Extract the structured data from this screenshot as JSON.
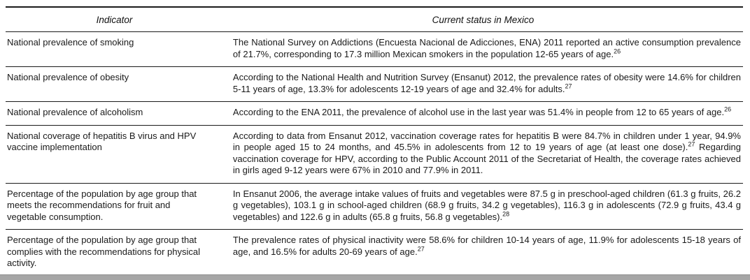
{
  "page": {
    "background": "#ffffff",
    "text_color": "#1a1a1a",
    "rule_color": "#1a1a1a"
  },
  "table": {
    "headers": {
      "indicator": "Indicator",
      "status": "Current status in Mexico"
    },
    "rows": [
      {
        "indicator": "National prevalence of smoking",
        "status": [
          {
            "t": "The National Survey on Addictions (Encuesta Nacional de Adicciones, ENA) 2011 reported an active consumption prevalence of 21.7%, corresponding to 17.3 million Mexican smokers in the population 12-65 years of age.",
            "sup": false
          },
          {
            "t": "26",
            "sup": true
          }
        ]
      },
      {
        "indicator": "National prevalence of obesity",
        "status": [
          {
            "t": "According to the National Health and Nutrition Survey (Ensanut) 2012, the prevalence rates of obesity were 14.6% for children 5-11 years of age, 13.3% for adolescents 12-19 years of age and 32.4% for adults.",
            "sup": false
          },
          {
            "t": "27",
            "sup": true
          }
        ]
      },
      {
        "indicator": "National prevalence of alcoholism",
        "status": [
          {
            "t": "According to the ENA 2011, the prevalence of alcohol use in the last year was 51.4% in people from 12 to 65 years of age.",
            "sup": false
          },
          {
            "t": "26",
            "sup": true
          }
        ]
      },
      {
        "indicator": "National coverage of hepatitis B virus and HPV vaccine implementation",
        "status": [
          {
            "t": "According to data from Ensanut 2012, vaccination coverage rates for hepatitis B were 84.7% in children under 1 year, 94.9% in people aged 15 to 24 months, and 45.5% in adolescents from 12 to 19 years of age (at least one dose).",
            "sup": false
          },
          {
            "t": "27",
            "sup": true
          },
          {
            "t": " Regarding vaccination coverage for HPV, according to the Public Account 2011 of the Secretariat of Health, the coverage rates achieved in girls aged 9-12 years were 67% in 2010 and 77.9% in 2011.",
            "sup": false
          }
        ]
      },
      {
        "indicator": "Percentage of the population by age group that meets the recommendations for fruit and vegetable consumption.",
        "status": [
          {
            "t": "In Ensanut 2006, the average intake values of fruits and vegetables were 87.5 g in preschool-aged children (61.3 g fruits, 26.2 g vegetables), 103.1 g in school-aged children (68.9 g fruits, 34.2 g vegetables), 116.3 g in adolescents (72.9 g fruits, 43.4 g vegetables) and 122.6 g in adults (65.8 g fruits, 56.8 g vegetables).",
            "sup": false
          },
          {
            "t": "28",
            "sup": true
          }
        ]
      },
      {
        "indicator": "Percentage of the population by age group that complies with the recommendations for physical activity.",
        "status": [
          {
            "t": "The prevalence rates of physical inactivity were 58.6% for children 10-14 years of age, 11.9% for adolescents 15-18 years of age, and 16.5% for adults 20-69 years of age.",
            "sup": false
          },
          {
            "t": "27",
            "sup": true
          }
        ]
      }
    ]
  }
}
